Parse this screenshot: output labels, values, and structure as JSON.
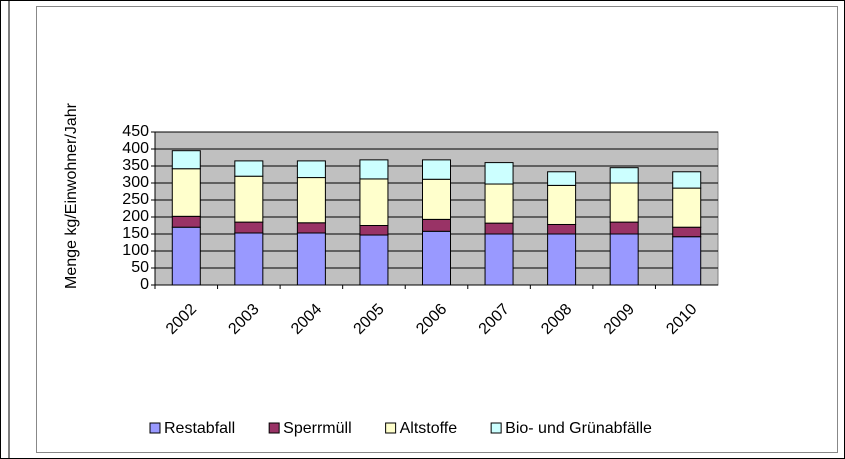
{
  "chart_data": {
    "type": "bar",
    "stacked": true,
    "y_label": "Menge kg/Einwohner/Jahr",
    "categories": [
      "2002",
      "2003",
      "2004",
      "2005",
      "2006",
      "2007",
      "2008",
      "2009",
      "2010"
    ],
    "series": [
      {
        "name": "Restabfall",
        "color": "#9999ff",
        "values": [
          170,
          153,
          153,
          147,
          158,
          150,
          150,
          150,
          142
        ]
      },
      {
        "name": "Sperrmüll",
        "color": "#993366",
        "values": [
          32,
          32,
          30,
          28,
          35,
          32,
          28,
          35,
          28
        ]
      },
      {
        "name": "Altstoffe",
        "color": "#ffffcc",
        "values": [
          140,
          135,
          133,
          137,
          118,
          115,
          115,
          115,
          115
        ]
      },
      {
        "name": "Bio- und Grünabfälle",
        "color": "#ccffff",
        "values": [
          53,
          45,
          49,
          56,
          57,
          63,
          40,
          45,
          48
        ]
      }
    ],
    "ylim": [
      0,
      450
    ],
    "yticks": [
      0,
      50,
      100,
      150,
      200,
      250,
      300,
      350,
      400,
      450
    ],
    "grid": true,
    "plot_background": "#c0c0c0",
    "legend": "bottom"
  }
}
